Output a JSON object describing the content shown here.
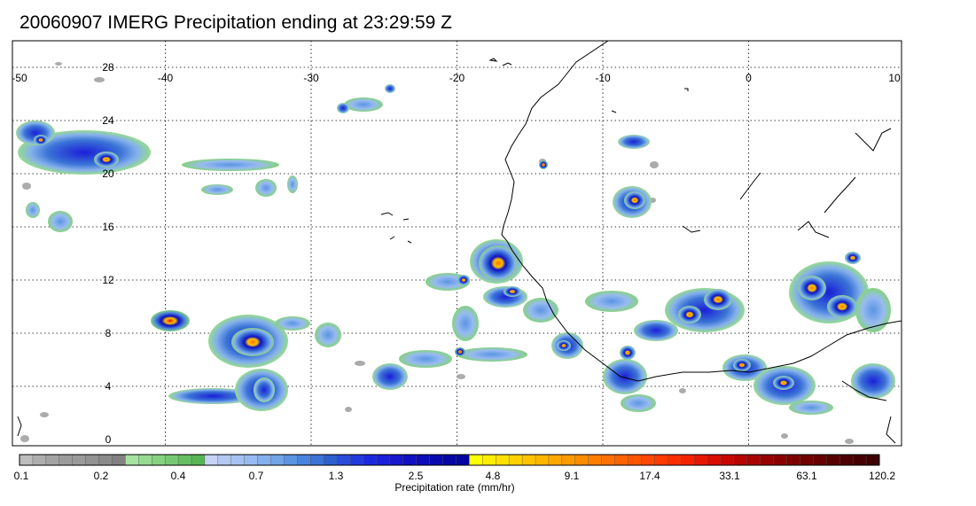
{
  "title": "20060907 IMERG Precipitation ending at 23:29:59 Z",
  "map": {
    "lon_range": [
      -50,
      10
    ],
    "lat_range": [
      -1,
      31
    ],
    "lon_ticks": [
      "-50",
      "-40",
      "-30",
      "-20",
      "-10",
      "0",
      "10"
    ],
    "lat_ticks": [
      "28",
      "24",
      "20",
      "16",
      "12",
      "8",
      "4",
      "0"
    ],
    "grid": "dotted",
    "coastline_color": "#000000"
  },
  "colorbar": {
    "title": "Precipitation rate (mm/hr)",
    "labels": [
      "0.1",
      "0.2",
      "0.4",
      "0.7",
      "1.3",
      "2.5",
      "4.8",
      "9.1",
      "17.4",
      "33.1",
      "63.1",
      "120.2"
    ],
    "colors": [
      "#bdbdbd",
      "#aeaeae",
      "#a3a3a3",
      "#9c9c9c",
      "#9a9a9a",
      "#939393",
      "#8a8a8a",
      "#818181",
      "#a6e3a0",
      "#96db90",
      "#86d281",
      "#76c972",
      "#66c063",
      "#56b654",
      "#c6d3f5",
      "#b3c9f3",
      "#a5c2f2",
      "#97bbf0",
      "#84b0ec",
      "#70a3e8",
      "#5b94e3",
      "#4a84dd",
      "#3b73d6",
      "#2d5fcf",
      "#2a4cd8",
      "#2339e0",
      "#1c28e0",
      "#1a1fd8",
      "#1717cc",
      "#1010c4",
      "#0c0cba",
      "#0808b0",
      "#0606a6",
      "#04049e",
      "#ffff00",
      "#ffee00",
      "#ffe000",
      "#ffd200",
      "#ffc400",
      "#ffb600",
      "#ffa800",
      "#ff9a00",
      "#ff8c00",
      "#ff7e00",
      "#ff7000",
      "#ff6200",
      "#ff5500",
      "#ff4800",
      "#ff3b00",
      "#ff2e00",
      "#f52200",
      "#e81600",
      "#d80c00",
      "#c80600",
      "#b80400",
      "#a80200",
      "#980000",
      "#8a0000",
      "#7c0000",
      "#700000",
      "#640000",
      "#580000",
      "#4d0000",
      "#440000",
      "#3c0000"
    ]
  }
}
